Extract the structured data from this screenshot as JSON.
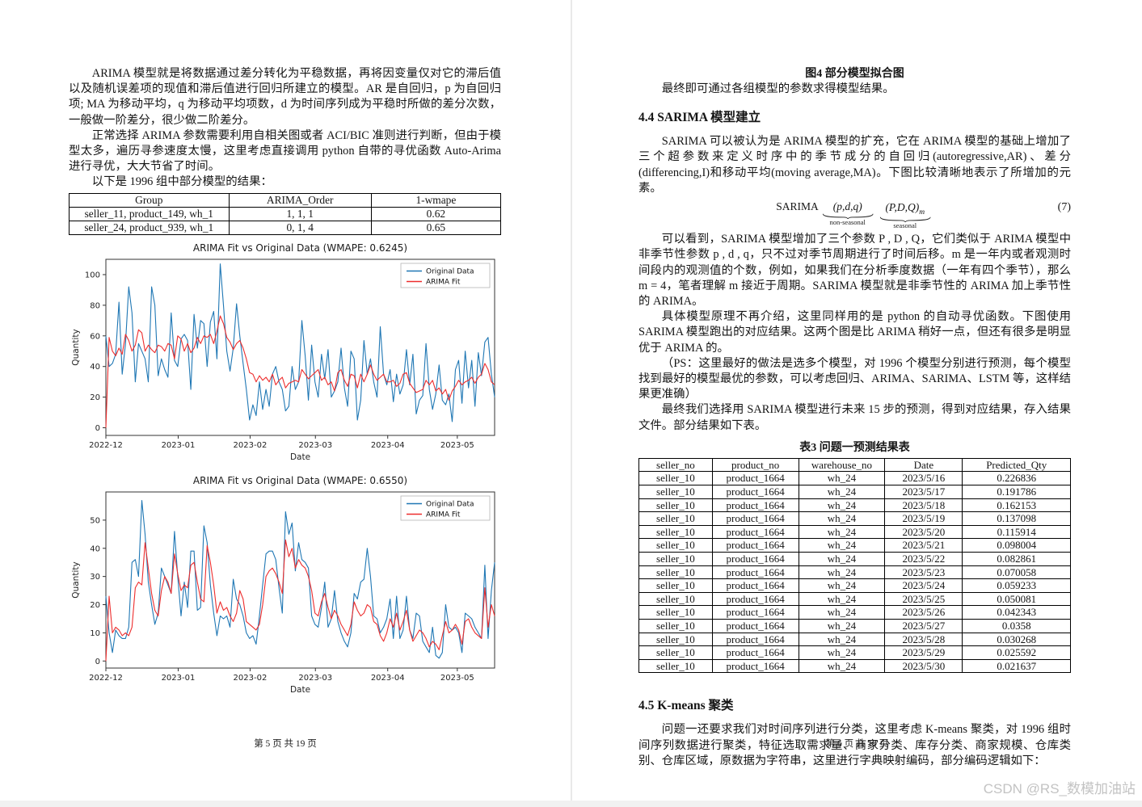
{
  "watermark": "CSDN @RS_数模加油站",
  "left_page": {
    "p1": "ARIMA 模型就是将数据通过差分转化为平稳数据，再将因变量仅对它的滞后值以及随机误差项的现值和滞后值进行回归所建立的模型。AR 是自回归，p 为自回归项; MA 为移动平均，q 为移动平均项数，d 为时间序列成为平稳时所做的差分次数，一般做一阶差分，很少做二阶差分。",
    "p2": "正常选择 ARIMA 参数需要利用自相关图或者 ACI/BIC 准则进行判断，但由于模型太多，遍历寻参速度太慢，这里考虑直接调用 python 自带的寻优函数 Auto-Arima 进行寻优，大大节省了时间。",
    "p3": "以下是 1996 组中部分模型的结果：",
    "arima_table": {
      "headers": [
        "Group",
        "ARIMA_Order",
        "1-wmape"
      ],
      "rows": [
        [
          "seller_11, product_149, wh_1",
          "1, 1, 1",
          "0.62"
        ],
        [
          "seller_24, product_939, wh_1",
          "0, 1, 4",
          "0.65"
        ]
      ]
    },
    "footer": "第 5 页 共 19 页"
  },
  "right_page": {
    "fig_caption": "图4 部分模型拟合图",
    "p_intro": "最终即可通过各组模型的参数求得模型结果。",
    "h_44": "4.4  SARIMA 模型建立",
    "p_sarima": "SARIMA 可以被认为是 ARIMA 模型的扩充，它在 ARIMA 模型的基础上增加了三个超参数来定义时序中的季节成分的自回归(autoregressive,AR)、差分(differencing,I)和移动平均(moving average,MA)。下图比较清晰地表示了所增加的元素。",
    "formula": {
      "main": "SARIMA",
      "nonseasonal": "(p,d,q)",
      "seasonal": "(P,D,Q)",
      "sub": "m",
      "label_left": "non-seasonal",
      "label_right": "seasonal",
      "number": "(7)"
    },
    "p_seen": "可以看到，SARIMA 模型增加了三个参数 P , D , Q，它们类似于 ARIMA 模型中非季节性参数 p , d , q，只不过对季节周期进行了时间后移。m 是一年内或者观测时间段内的观测值的个数，例如，如果我们在分析季度数据（一年有四个季节），那么 m = 4，笔者理解 m 接近于周期。SARIMA 模型就是非季节性的 ARIMA 加上季节性的 ARIMA。",
    "p_detail": "具体模型原理不再介绍，这里同样用的是 python 的自动寻优函数。下图使用 SARIMA 模型跑出的对应结果。这两个图是比 ARIMA 稍好一点，但还有很多是明显优于 ARIMA 的。",
    "p_ps": "（PS：这里最好的做法是选多个模型，对 1996 个模型分别进行预测，每个模型找到最好的模型最优的参数，可以考虑回归、ARIMA、SARIMA、LSTM 等，这样结果更准确）",
    "p_final": "最终我们选择用 SARIMA 模型进行未来 15 步的预测，得到对应结果，存入结果文件。部分结果如下表。",
    "tbl_caption": "表3 问题一预测结果表",
    "predict_table": {
      "headers": [
        "seller_no",
        "product_no",
        "warehouse_no",
        "Date",
        "Predicted_Qty"
      ],
      "rows": [
        [
          "seller_10",
          "product_1664",
          "wh_24",
          "2023/5/16",
          "0.226836"
        ],
        [
          "seller_10",
          "product_1664",
          "wh_24",
          "2023/5/17",
          "0.191786"
        ],
        [
          "seller_10",
          "product_1664",
          "wh_24",
          "2023/5/18",
          "0.162153"
        ],
        [
          "seller_10",
          "product_1664",
          "wh_24",
          "2023/5/19",
          "0.137098"
        ],
        [
          "seller_10",
          "product_1664",
          "wh_24",
          "2023/5/20",
          "0.115914"
        ],
        [
          "seller_10",
          "product_1664",
          "wh_24",
          "2023/5/21",
          "0.098004"
        ],
        [
          "seller_10",
          "product_1664",
          "wh_24",
          "2023/5/22",
          "0.082861"
        ],
        [
          "seller_10",
          "product_1664",
          "wh_24",
          "2023/5/23",
          "0.070058"
        ],
        [
          "seller_10",
          "product_1664",
          "wh_24",
          "2023/5/24",
          "0.059233"
        ],
        [
          "seller_10",
          "product_1664",
          "wh_24",
          "2023/5/25",
          "0.050081"
        ],
        [
          "seller_10",
          "product_1664",
          "wh_24",
          "2023/5/26",
          "0.042343"
        ],
        [
          "seller_10",
          "product_1664",
          "wh_24",
          "2023/5/27",
          "0.0358"
        ],
        [
          "seller_10",
          "product_1664",
          "wh_24",
          "2023/5/28",
          "0.030268"
        ],
        [
          "seller_10",
          "product_1664",
          "wh_24",
          "2023/5/29",
          "0.025592"
        ],
        [
          "seller_10",
          "product_1664",
          "wh_24",
          "2023/5/30",
          "0.021637"
        ]
      ]
    },
    "h_45": "4.5  K-means 聚类",
    "p_kmeans": "问题一还要求我们对时间序列进行分类，这里考虑 K-means 聚类，对 1996 组时间序列数据进行聚类，特征选取需求量、商家分类、库存分类、商家规模、仓库类别、仓库区域，原数据为字符串，这里进行字典映射编码，部分编码逻辑如下：",
    "footer": "第 6 页 共 19 页"
  },
  "chart_data": [
    {
      "type": "line",
      "title": "ARIMA Fit vs Original Data (WMAPE: 0.6245)",
      "xlabel": "Date",
      "ylabel": "Quantity",
      "ylim": [
        -5,
        110
      ],
      "y_ticks": [
        0,
        20,
        40,
        60,
        80,
        100
      ],
      "x_ticks": [
        {
          "label": "2022-12",
          "pos": 0.0
        },
        {
          "label": "2023-01",
          "pos": 0.186
        },
        {
          "label": "2023-02",
          "pos": 0.371
        },
        {
          "label": "2023-03",
          "pos": 0.539
        },
        {
          "label": "2023-04",
          "pos": 0.725
        },
        {
          "label": "2023-05",
          "pos": 0.904
        }
      ],
      "grid": false,
      "legend_position": "upper right",
      "series": [
        {
          "name": "Original Data",
          "color": "#1f77b4",
          "values": [
            60,
            40,
            42,
            48,
            82,
            35,
            55,
            92,
            75,
            30,
            55,
            50,
            45,
            30,
            92,
            80,
            34,
            45,
            38,
            33,
            75,
            44,
            40,
            58,
            61,
            57,
            25,
            74,
            52,
            70,
            68,
            40,
            69,
            76,
            45,
            107,
            80,
            50,
            37,
            52,
            81,
            60,
            42,
            25,
            5,
            15,
            8,
            30,
            12,
            25,
            14,
            35,
            40,
            30,
            25,
            11,
            14,
            40,
            25,
            30,
            70,
            47,
            18,
            54,
            30,
            20,
            48,
            32,
            51,
            20,
            24,
            30,
            52,
            26,
            14,
            50,
            45,
            5,
            18,
            57,
            35,
            45,
            30,
            20,
            66,
            35,
            28,
            38,
            17,
            35,
            22,
            28,
            51,
            28,
            48,
            9,
            18,
            21,
            55,
            25,
            12,
            22,
            41,
            18,
            15,
            22,
            4,
            38,
            44,
            16,
            50,
            26,
            44,
            14,
            49,
            34,
            56,
            59,
            35,
            20
          ]
        },
        {
          "name": "ARIMA Fit",
          "color": "#ed2d2d",
          "values": [
            0,
            59,
            50,
            47,
            52,
            48,
            61,
            57,
            50,
            54,
            64,
            62,
            50,
            54,
            51,
            49,
            54,
            53,
            50,
            55,
            54,
            45,
            60,
            58,
            50,
            55,
            49,
            52,
            59,
            55,
            60,
            59,
            61,
            55,
            63,
            73,
            68,
            59,
            56,
            51,
            55,
            57,
            52,
            45,
            36,
            35,
            30,
            34,
            31,
            33,
            30,
            35,
            28,
            31,
            33,
            26,
            29,
            30,
            31,
            30,
            38,
            35,
            32,
            34,
            36,
            38,
            31,
            33,
            28,
            30,
            24,
            36,
            38,
            31,
            27,
            35,
            34,
            26,
            35,
            30,
            35,
            41,
            35,
            31,
            33,
            35,
            30,
            30,
            31,
            27,
            29,
            35,
            36,
            29,
            26,
            23,
            24,
            25,
            31,
            28,
            31,
            24,
            26,
            22,
            25,
            18,
            24,
            27,
            31,
            28,
            30,
            31,
            33,
            29,
            33,
            35,
            42,
            38,
            30,
            28
          ]
        }
      ]
    },
    {
      "type": "line",
      "title": "ARIMA Fit vs Original Data (WMAPE: 0.6550)",
      "xlabel": "Date",
      "ylabel": "Quantity",
      "ylim": [
        -2.5,
        60
      ],
      "y_ticks": [
        0,
        10,
        20,
        30,
        40,
        50
      ],
      "x_ticks": [
        {
          "label": "2022-12",
          "pos": 0.0
        },
        {
          "label": "2023-01",
          "pos": 0.186
        },
        {
          "label": "2023-02",
          "pos": 0.371
        },
        {
          "label": "2023-03",
          "pos": 0.539
        },
        {
          "label": "2023-04",
          "pos": 0.725
        },
        {
          "label": "2023-05",
          "pos": 0.904
        }
      ],
      "grid": false,
      "legend_position": "upper right",
      "series": [
        {
          "name": "Original Data",
          "color": "#1f77b4",
          "values": [
            23,
            10,
            3,
            11,
            9,
            8,
            8,
            12,
            35,
            36,
            30,
            57,
            45,
            28,
            20,
            13,
            17,
            33,
            30,
            27,
            24,
            46,
            30,
            16,
            28,
            19,
            39,
            39,
            18,
            19,
            48,
            42,
            27,
            17,
            9,
            16,
            15,
            16,
            12,
            29,
            22,
            20,
            16,
            10,
            8,
            9,
            6,
            16,
            27,
            38,
            39,
            39,
            36,
            26,
            17,
            53,
            45,
            49,
            32,
            42,
            36,
            35,
            33,
            16,
            13,
            12,
            19,
            28,
            12,
            15,
            25,
            14,
            10,
            7,
            5,
            10,
            24,
            22,
            28,
            29,
            40,
            30,
            16,
            15,
            10,
            12,
            15,
            22,
            8,
            23,
            8,
            11,
            23,
            11,
            8,
            17,
            16,
            7,
            5,
            3,
            12,
            2,
            1,
            3,
            20,
            12,
            11,
            12,
            10,
            3,
            17,
            16,
            15,
            12,
            10,
            8,
            34,
            8,
            25,
            35
          ]
        },
        {
          "name": "ARIMA Fit",
          "color": "#ed2d2d",
          "values": [
            0,
            23,
            10,
            12,
            11,
            9,
            10,
            9,
            12,
            26,
            28,
            27,
            42,
            33,
            24,
            18,
            16,
            25,
            30,
            28,
            24,
            38,
            31,
            25,
            27,
            26,
            34,
            35,
            28,
            22,
            21,
            41,
            35,
            27,
            17,
            21,
            18,
            19,
            16,
            14,
            17,
            25,
            22,
            14,
            13,
            12,
            11,
            13,
            20,
            30,
            32,
            33,
            31,
            28,
            24,
            43,
            37,
            40,
            33,
            36,
            34,
            33,
            30,
            25,
            17,
            16,
            21,
            24,
            19,
            15,
            18,
            16,
            13,
            11,
            9,
            13,
            21,
            18,
            16,
            17,
            20,
            19,
            14,
            13,
            9,
            7,
            10,
            15,
            12,
            17,
            11,
            14,
            18,
            11,
            7,
            9,
            11,
            10,
            8,
            5,
            7,
            6,
            4,
            9,
            14,
            10,
            11,
            13,
            11,
            6,
            14,
            15,
            12,
            10,
            9,
            8,
            26,
            12,
            20,
            16
          ]
        }
      ]
    }
  ]
}
